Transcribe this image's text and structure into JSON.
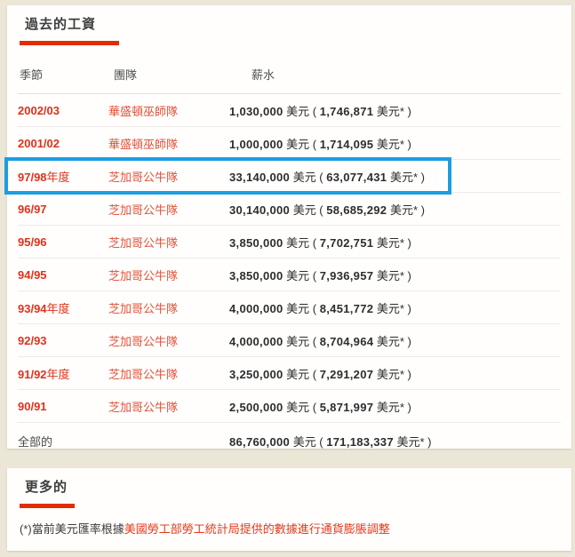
{
  "salary_section": {
    "title": "過去的工資",
    "columns": [
      "季節",
      "團隊",
      "薪水"
    ],
    "format": {
      "currency_open": " 美元 ( ",
      "currency_close": " 美元* )"
    },
    "rows": [
      {
        "season": "2002/03",
        "season_suffix": "",
        "team": "華盛頓巫師隊",
        "amount": "1,030,000",
        "adjusted": "1,746,871"
      },
      {
        "season": "2001/02",
        "season_suffix": "",
        "team": "華盛頓巫師隊",
        "amount": "1,000,000",
        "adjusted": "1,714,095"
      },
      {
        "season": "97/98",
        "season_suffix": "年度",
        "team": "芝加哥公牛隊",
        "amount": "33,140,000",
        "adjusted": "63,077,431"
      },
      {
        "season": "96/97",
        "season_suffix": "",
        "team": "芝加哥公牛隊",
        "amount": "30,140,000",
        "adjusted": "58,685,292"
      },
      {
        "season": "95/96",
        "season_suffix": "",
        "team": "芝加哥公牛隊",
        "amount": "3,850,000",
        "adjusted": "7,702,751"
      },
      {
        "season": "94/95",
        "season_suffix": "",
        "team": "芝加哥公牛隊",
        "amount": "3,850,000",
        "adjusted": "7,936,957"
      },
      {
        "season": "93/94",
        "season_suffix": "年度",
        "team": "芝加哥公牛隊",
        "amount": "4,000,000",
        "adjusted": "8,451,772"
      },
      {
        "season": "92/93",
        "season_suffix": "",
        "team": "芝加哥公牛隊",
        "amount": "4,000,000",
        "adjusted": "8,704,964"
      },
      {
        "season": "91/92",
        "season_suffix": "年度",
        "team": "芝加哥公牛隊",
        "amount": "3,250,000",
        "adjusted": "7,291,207"
      },
      {
        "season": "90/91",
        "season_suffix": "",
        "team": "芝加哥公牛隊",
        "amount": "2,500,000",
        "adjusted": "5,871,997"
      }
    ],
    "highlight_index": 2,
    "total": {
      "label": "全部的",
      "amount": "86,760,000",
      "adjusted": "171,183,337"
    }
  },
  "more_section": {
    "title": "更多的",
    "footnote_prefix": "(*)當前美元匯率根據",
    "footnote_link": "美國勞工部勞工統計局提供的數據進行通貨膨脹調整"
  },
  "colors": {
    "page_bg": "#ece6d7",
    "card_bg": "#fffefd",
    "accent_red": "#e32d00",
    "season_red": "#e0311a",
    "team_link_red": "#e25138",
    "footnote_link_red": "#e2391b",
    "highlight_blue": "#1b9ee2",
    "dark_text": "#2d2d2d"
  }
}
